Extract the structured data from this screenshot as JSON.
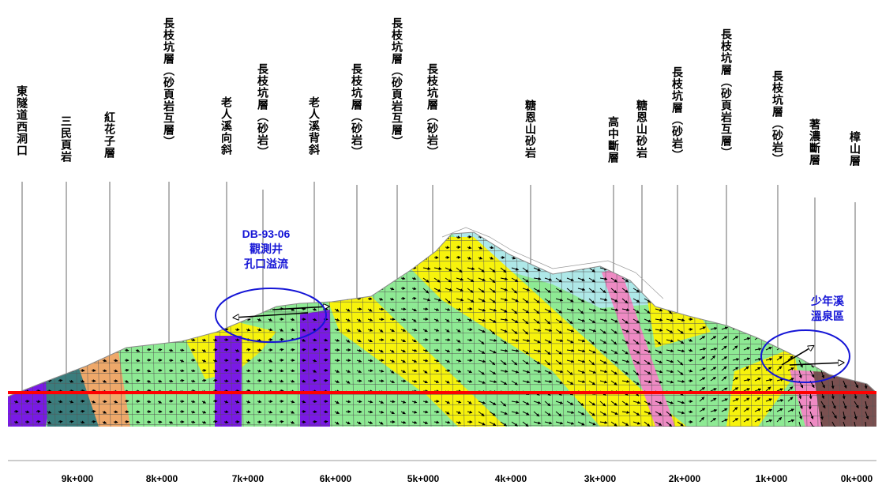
{
  "geologic_labels": [
    "東隧道西洞口",
    "三民頁岩",
    "紅花子層",
    "長枝坑層（砂頁岩互層）",
    "老人溪向斜",
    "長枝坑層（砂岩）",
    "老人溪背斜",
    "長枝坑層（砂岩）",
    "長枝坑層（砂頁岩互層）",
    "長枝坑層（砂岩）",
    "糖恩山砂岩",
    "高中斷層",
    "糖恩山砂岩",
    "長枝坑層（砂岩）",
    "長枝坑層（砂頁岩互層）",
    "長枝坑層（砂岩）",
    "著濃斷層",
    "樟山層"
  ],
  "chainage_ticks": [
    "9k+000",
    "8k+000",
    "7k+000",
    "6k+000",
    "5k+000",
    "4k+000",
    "3k+000",
    "2k+000",
    "1k+000",
    "0k+000"
  ],
  "annotation_well": {
    "id": "DB-93-06",
    "line1": "觀測井",
    "line2": "孔口溢流"
  },
  "annotation_spring": {
    "line1": "少年溪",
    "line2": "溫泉區"
  },
  "colors": {
    "green": "#8eea94",
    "yellow": "#f7f30c",
    "purple": "#7a19e6",
    "teal": "#3a7d7d",
    "orange": "#eea86a",
    "cyan": "#aee8e8",
    "pink": "#ee8ac3",
    "brown": "#7a5050",
    "red_line": "#ff0000",
    "annotation_blue": "#1515d6",
    "grid": "#555555"
  }
}
